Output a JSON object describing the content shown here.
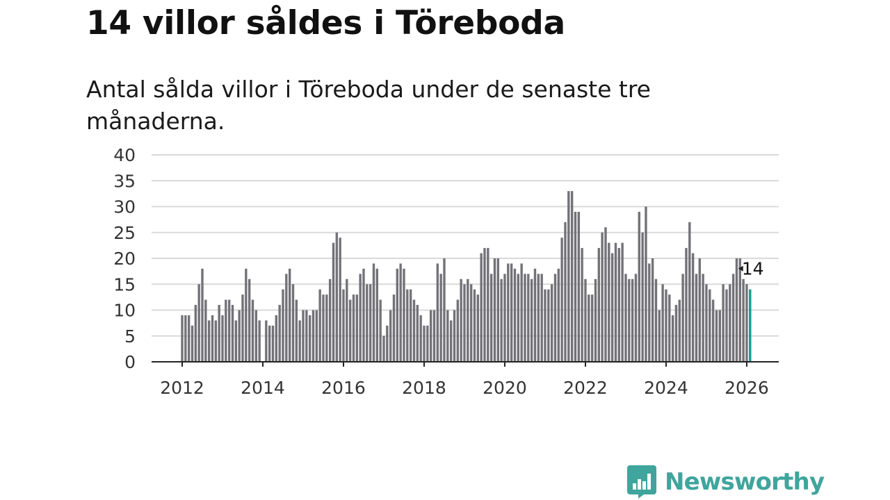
{
  "title": "14 villor såldes i Töreboda",
  "subtitle": "Antal sålda villor i Töreboda under de senaste tre månaderna.",
  "logo": {
    "text": "Newsworthy",
    "color": "#3fa59d",
    "icon": "bar-chart-speech-bubble-icon"
  },
  "colors": {
    "bar": "#737278",
    "highlight": "#1a9a8e",
    "grid": "#d9d9d9",
    "axis": "#222222"
  },
  "chart_data": {
    "type": "bar",
    "title": "14 villor såldes i Töreboda",
    "subtitle": "Antal sålda villor i Töreboda under de senaste tre månaderna.",
    "xlabel": "",
    "ylabel": "",
    "ylim": [
      0,
      40
    ],
    "yticks": [
      "0",
      "5",
      "10",
      "15",
      "20",
      "25",
      "30",
      "35",
      "40"
    ],
    "xticks": [
      "2012",
      "2014",
      "2016",
      "2018",
      "2020",
      "2022",
      "2024",
      "2026"
    ],
    "x_start": "2012-01",
    "x_interval": "month",
    "grid": true,
    "values": [
      9,
      9,
      9,
      7,
      11,
      15,
      18,
      12,
      8,
      9,
      8,
      11,
      9,
      12,
      12,
      11,
      8,
      10,
      13,
      18,
      16,
      12,
      10,
      8,
      0,
      8,
      7,
      7,
      9,
      11,
      14,
      17,
      18,
      15,
      12,
      8,
      10,
      10,
      9,
      10,
      10,
      14,
      13,
      13,
      16,
      23,
      25,
      24,
      14,
      16,
      12,
      13,
      13,
      17,
      18,
      15,
      15,
      19,
      18,
      12,
      5,
      7,
      10,
      13,
      18,
      19,
      18,
      14,
      14,
      12,
      11,
      9,
      7,
      7,
      10,
      10,
      19,
      17,
      20,
      10,
      8,
      10,
      12,
      16,
      15,
      16,
      15,
      14,
      13,
      21,
      22,
      22,
      17,
      20,
      20,
      16,
      17,
      19,
      19,
      18,
      17,
      19,
      17,
      17,
      16,
      18,
      17,
      17,
      14,
      14,
      15,
      17,
      18,
      24,
      27,
      33,
      33,
      29,
      29,
      22,
      16,
      13,
      13,
      16,
      22,
      25,
      26,
      23,
      21,
      23,
      22,
      23,
      17,
      16,
      16,
      17,
      29,
      25,
      30,
      19,
      20,
      16,
      10,
      15,
      14,
      13,
      9,
      11,
      12,
      17,
      22,
      27,
      21,
      17,
      20,
      17,
      15,
      14,
      12,
      10,
      10,
      15,
      14,
      15,
      17,
      20,
      20,
      16,
      15,
      14
    ],
    "highlight": {
      "index": 169,
      "value": 14,
      "label": "14"
    }
  }
}
